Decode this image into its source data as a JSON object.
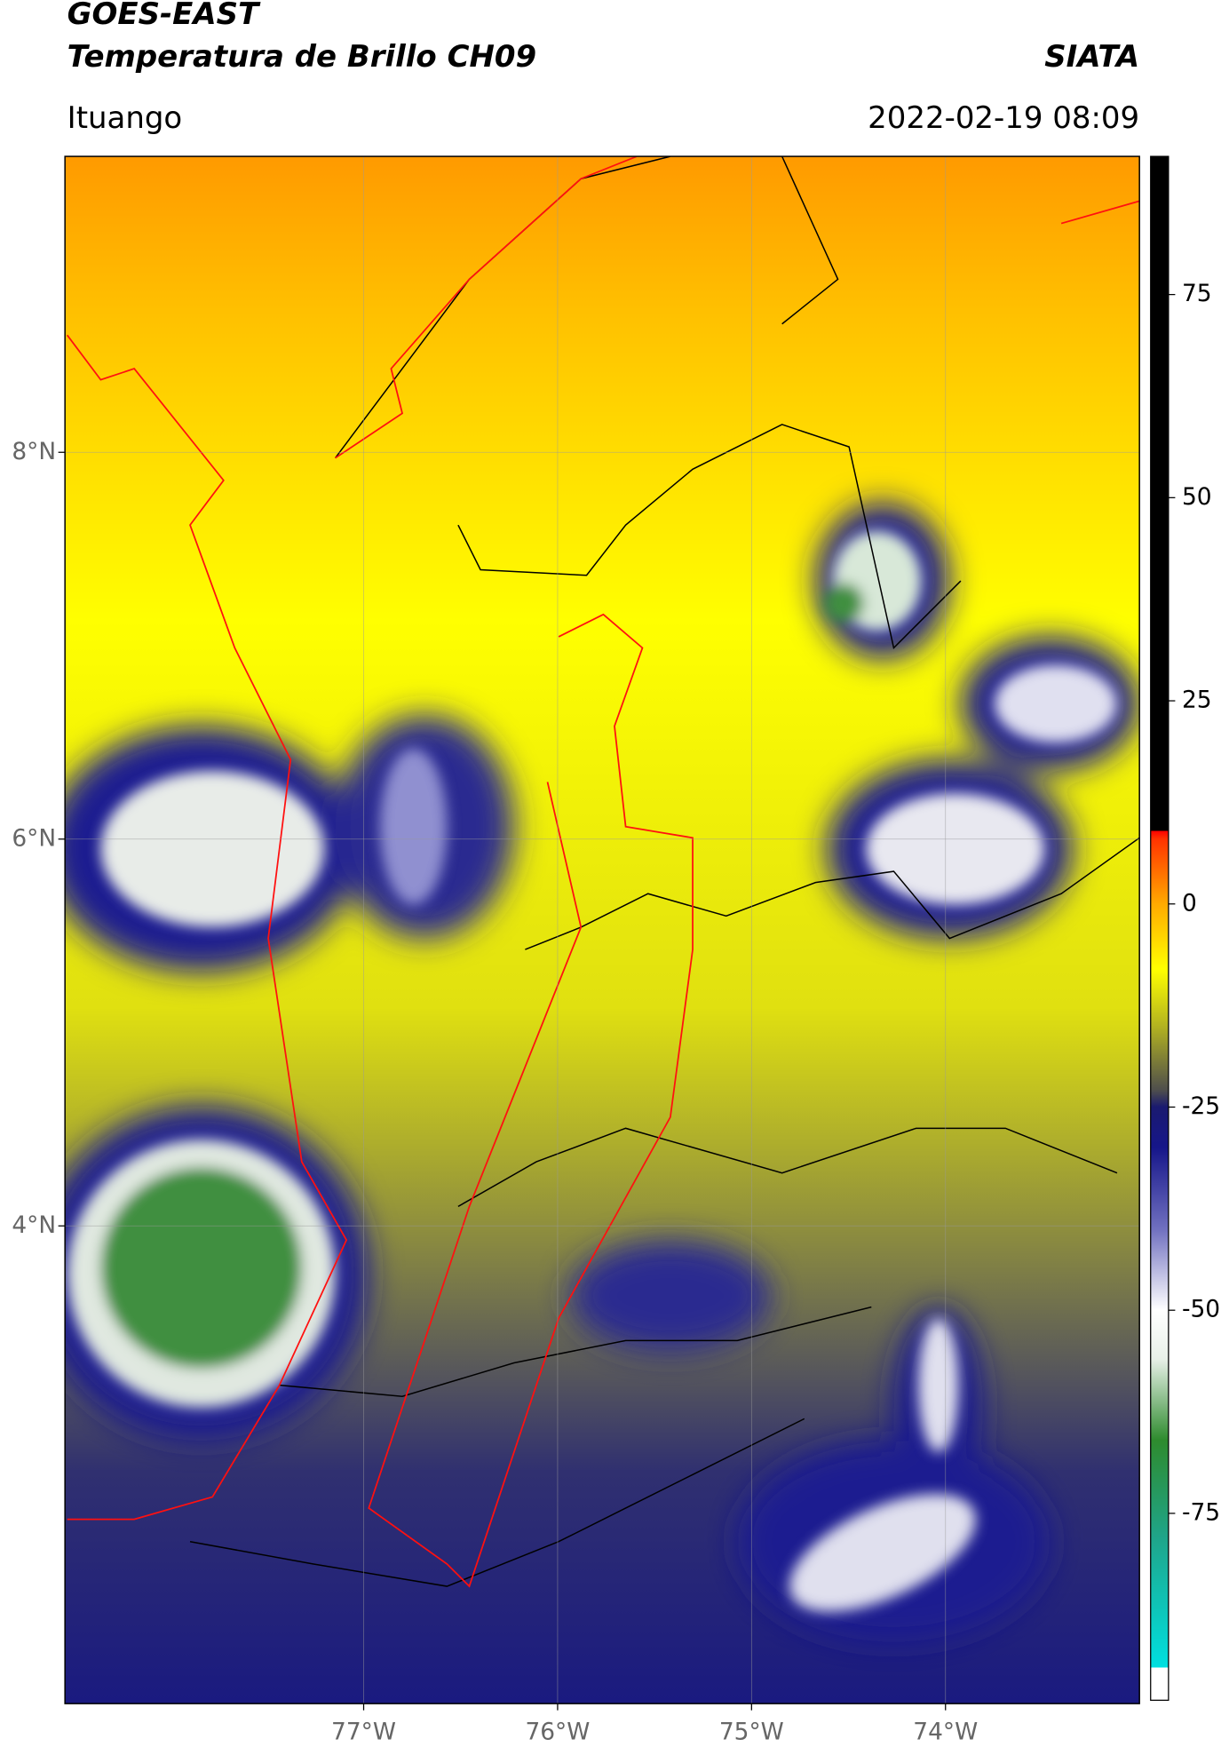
{
  "header": {
    "line1": "GOES-EAST",
    "line2": "Temperatura de Brillo CH09",
    "source": "SIATA",
    "location": "Ituango",
    "datetime": "2022-02-19 08:09"
  },
  "map": {
    "xlim": [
      -78.54,
      -73.0
    ],
    "ylim": [
      1.53,
      9.53
    ],
    "xticks": [
      {
        "value": -77,
        "label": "77°W"
      },
      {
        "value": -76,
        "label": "76°W"
      },
      {
        "value": -75,
        "label": "75°W"
      },
      {
        "value": -74,
        "label": "74°W"
      }
    ],
    "yticks": [
      {
        "value": 8,
        "label": "8°N"
      },
      {
        "value": 6,
        "label": "6°N"
      },
      {
        "value": 4,
        "label": "4°N"
      }
    ],
    "grid": true
  },
  "colorbar": {
    "vlim": [
      -98,
      92
    ],
    "ticks": [
      75,
      50,
      25,
      0,
      -25,
      -50,
      -75
    ],
    "stops": [
      {
        "value": -98,
        "color": "#ffffff"
      },
      {
        "value": -94,
        "color": "#ffffff"
      },
      {
        "value": -94,
        "color": "#00e0e0"
      },
      {
        "value": -78,
        "color": "#1fa58a"
      },
      {
        "value": -66,
        "color": "#2e8b2e"
      },
      {
        "value": -56,
        "color": "#e8f0e8"
      },
      {
        "value": -50,
        "color": "#ffffff"
      },
      {
        "value": -40,
        "color": "#7070c0"
      },
      {
        "value": -30,
        "color": "#16168a"
      },
      {
        "value": -25,
        "color": "#1a1a70"
      },
      {
        "value": -23,
        "color": "#4d4d4d"
      },
      {
        "value": -15,
        "color": "#b3b320"
      },
      {
        "value": -8,
        "color": "#ffff00"
      },
      {
        "value": 0,
        "color": "#ffaa00"
      },
      {
        "value": 8,
        "color": "#ff3300"
      },
      {
        "value": 9,
        "color": "#ff0000"
      },
      {
        "value": 9,
        "color": "#000000"
      },
      {
        "value": 92,
        "color": "#000000"
      }
    ]
  }
}
